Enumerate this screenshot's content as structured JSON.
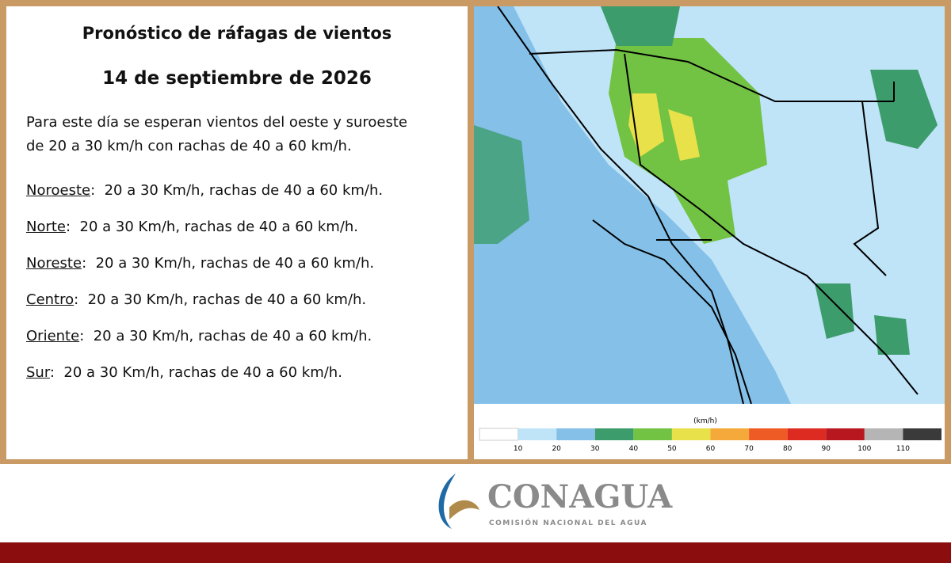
{
  "header": {
    "title": "Pronóstico de ráfagas de vientos",
    "date": "14 de septiembre  de 2026"
  },
  "intro": [
    "Para este día se esperan vientos del oeste y suroeste",
    "de 20 a 30 km/h con rachas de 40 a 60 km/h."
  ],
  "regions": [
    {
      "name": "Noroeste",
      "text": ":  20 a 30 Km/h, rachas de 40 a 60 km/h."
    },
    {
      "name": "Norte",
      "text": ":  20 a 30 Km/h, rachas de 40 a 60 km/h."
    },
    {
      "name": "Noreste",
      "text": ":  20 a 30 Km/h, rachas de 40 a 60 km/h."
    },
    {
      "name": "Centro",
      "text": ":  20 a 30 Km/h, rachas de 40 a 60 km/h."
    },
    {
      "name": "Oriente",
      "text": ":  20 a 30 Km/h, rachas de 40 a 60 km/h."
    },
    {
      "name": "Sur",
      "text": ":  20 a 30 Km/h, rachas de 40 a 60 km/h."
    }
  ],
  "legend": {
    "unit": "(km/h)",
    "ticks": [
      "10",
      "20",
      "30",
      "40",
      "50",
      "60",
      "70",
      "80",
      "90",
      "100",
      "110"
    ],
    "colors": [
      "#ffffff",
      "#bfe3f7",
      "#84c0e8",
      "#3d9c6b",
      "#72c244",
      "#e8e14a",
      "#f5a93b",
      "#ee5b24",
      "#dd2b22",
      "#b8171f",
      "#b5b5b5",
      "#3a3a3a"
    ]
  },
  "logo": {
    "name": "CONAGUA",
    "subtitle": "COMISIÓN NACIONAL DEL AGUA"
  }
}
